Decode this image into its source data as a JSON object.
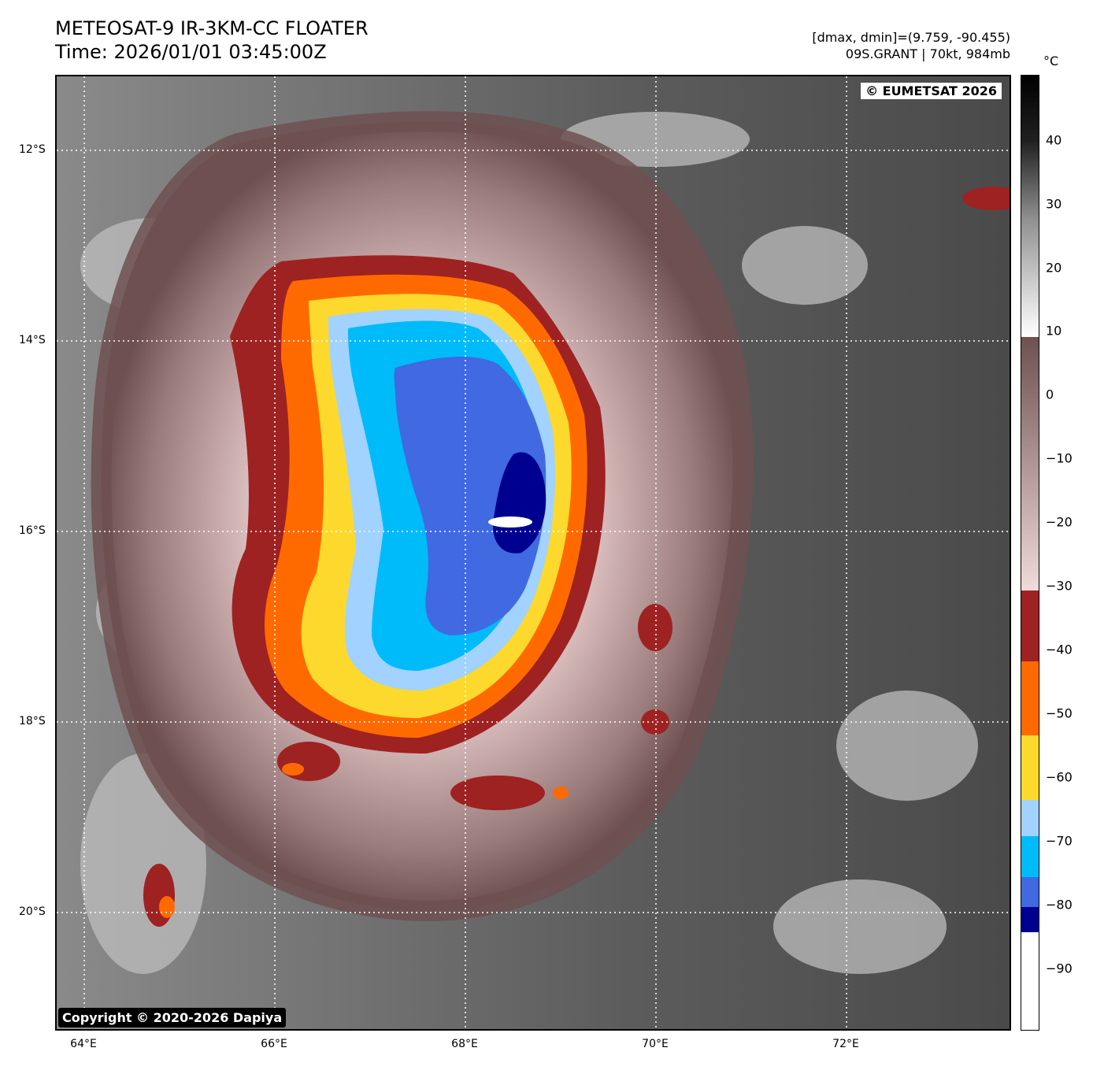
{
  "header": {
    "title_line1": "METEOSAT-9 IR-3KM-CC FLOATER",
    "title_line2": "Time: 2026/01/01 03:45:00Z",
    "info_line1": "[dmax, dmin]=(9.759, -90.455)",
    "info_line2": "09S.GRANT | 70kt, 984mb"
  },
  "map": {
    "credit_top": "© EUMETSAT 2026",
    "credit_bottom": "Copyright © 2020-2026 Dapiya",
    "lat_labels": [
      "12°S",
      "14°S",
      "16°S",
      "18°S",
      "20°S"
    ],
    "lon_labels": [
      "64°E",
      "66°E",
      "68°E",
      "70°E",
      "72°E"
    ]
  },
  "colorbar": {
    "unit": "°C",
    "ticks": [
      "40",
      "30",
      "20",
      "10",
      "0",
      "−10",
      "−20",
      "−30",
      "−40",
      "−50",
      "−60",
      "−70",
      "−80",
      "−90"
    ],
    "colors": {
      "dark_red": "#9e2222",
      "orange": "#ff6a00",
      "yellow": "#fcd92c",
      "light_blue": "#a2d2ff",
      "cyan": "#00bbf9",
      "royal_blue": "#4169e1",
      "navy": "#000090",
      "pink": "#eed8d8",
      "brown": "#6e5050"
    }
  }
}
